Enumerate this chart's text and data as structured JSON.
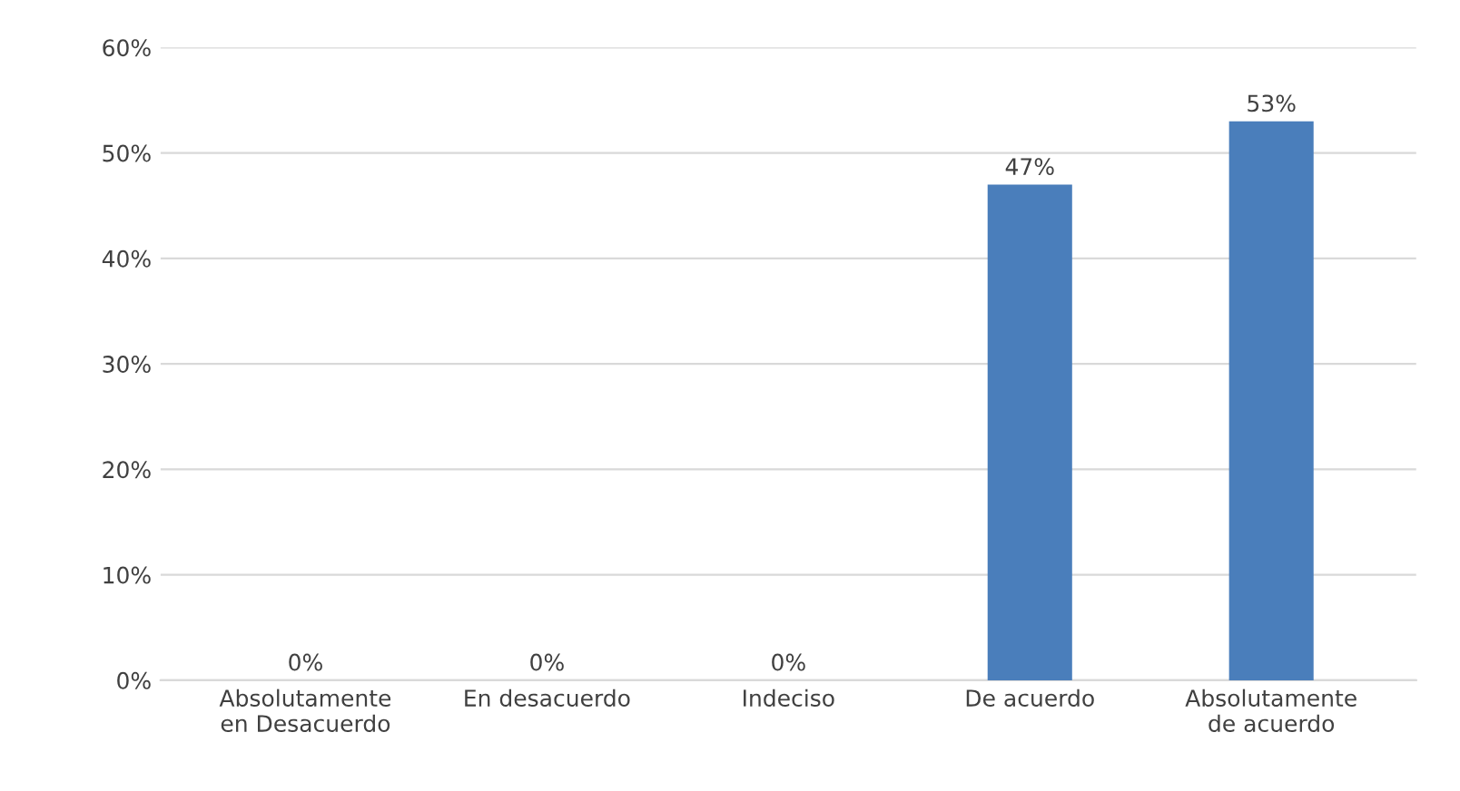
{
  "chart_data": {
    "type": "bar",
    "categories": [
      "Absolutamente\nen Desacuerdo",
      "En desacuerdo",
      "Indeciso",
      "De acuerdo",
      "Absolutamente\nde acuerdo"
    ],
    "values": [
      0,
      0,
      0,
      47,
      53
    ],
    "value_labels": [
      "0%",
      "0%",
      "0%",
      "47%",
      "53%"
    ],
    "color": "#4a7ebb",
    "ylim": [
      0,
      60
    ],
    "yticks": [
      {
        "value": 0,
        "label": "0%"
      },
      {
        "value": 10,
        "label": "10%"
      },
      {
        "value": 20,
        "label": "20%"
      },
      {
        "value": 30,
        "label": "30%"
      },
      {
        "value": 40,
        "label": "40%"
      },
      {
        "value": 50,
        "label": "50%"
      },
      {
        "value": 60,
        "label": "60%"
      }
    ],
    "grid": "y",
    "legend": false
  }
}
